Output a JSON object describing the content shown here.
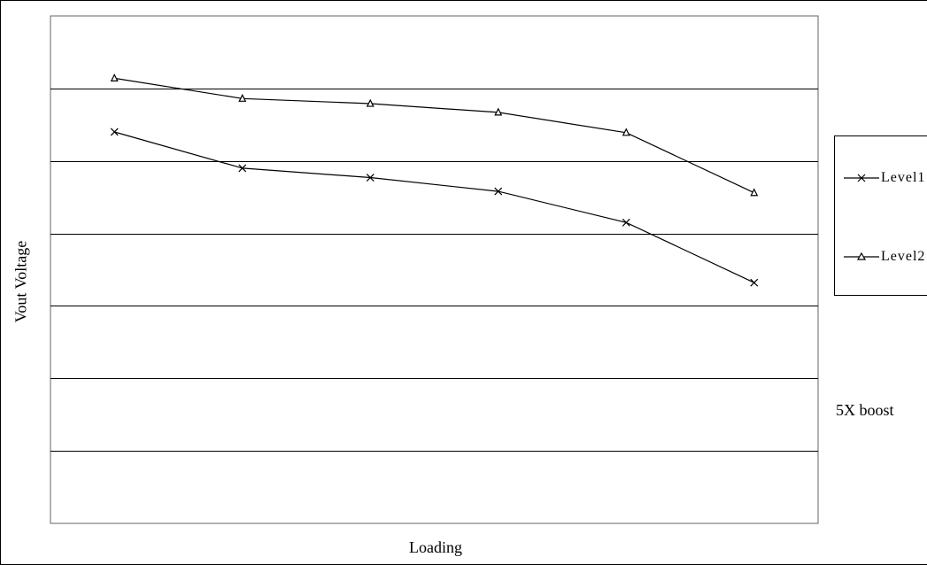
{
  "chart_data": {
    "type": "line",
    "title": "",
    "xlabel": "Loading",
    "ylabel": "Vout Voltage",
    "x": [
      1,
      2,
      3,
      4,
      5,
      6
    ],
    "ylim": [
      0,
      7
    ],
    "grid": true,
    "legend_position": "right",
    "series": [
      {
        "name": "Level1",
        "marker": "x",
        "color": "#000000",
        "values": [
          5.4,
          4.9,
          4.77,
          4.58,
          4.15,
          3.32
        ]
      },
      {
        "name": "Level2",
        "marker": "triangle",
        "color": "#000000",
        "values": [
          6.14,
          5.86,
          5.79,
          5.67,
          5.39,
          4.56
        ]
      }
    ],
    "annotations": [
      "5X boost"
    ]
  }
}
